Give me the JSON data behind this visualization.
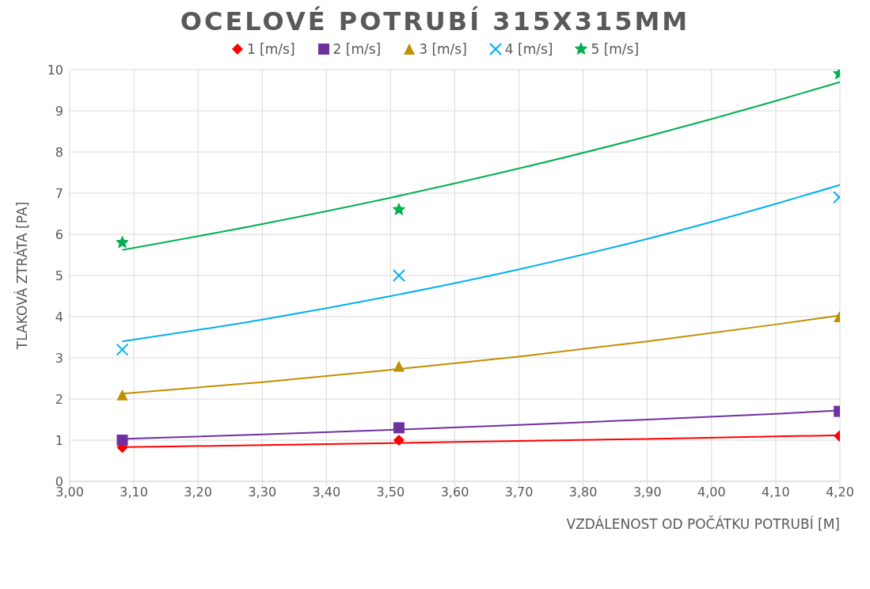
{
  "chart_data": {
    "type": "scatter",
    "title": "OCELOVÉ POTRUBÍ 315X315MM",
    "xlabel": "VZDÁLENOST OD POČÁTKU POTRUBÍ [M]",
    "ylabel": "TLAKOVÁ ZTRÁTA [PA]",
    "x": [
      3.082,
      3.513,
      4.199
    ],
    "series": [
      {
        "name": "1 [m/s]",
        "color": "#ff0000",
        "marker": "diamond",
        "values": [
          0.82,
          1.0,
          1.1
        ]
      },
      {
        "name": "2 [m/s]",
        "color": "#7030a0",
        "marker": "square",
        "values": [
          1.0,
          1.3,
          1.7
        ]
      },
      {
        "name": "3 [m/s]",
        "color": "#bf9000",
        "marker": "triangle",
        "values": [
          2.1,
          2.8,
          4.0
        ]
      },
      {
        "name": "4 [m/s]",
        "color": "#00b0f0",
        "marker": "cross",
        "values": [
          3.2,
          5.0,
          6.9
        ]
      },
      {
        "name": "5 [m/s]",
        "color": "#00b050",
        "marker": "star",
        "values": [
          5.8,
          6.6,
          9.9
        ]
      },
      {
        "type": "line",
        "color": "#ff0000",
        "x": [
          3.082,
          3.3,
          3.5,
          3.7,
          3.9,
          4.1,
          4.2
        ],
        "values": [
          0.83,
          0.88,
          0.93,
          0.98,
          1.03,
          1.09,
          1.12
        ]
      },
      {
        "type": "line",
        "color": "#7030a0",
        "x": [
          3.082,
          3.3,
          3.5,
          3.7,
          3.9,
          4.1,
          4.2
        ],
        "values": [
          1.03,
          1.14,
          1.25,
          1.37,
          1.5,
          1.64,
          1.72
        ]
      },
      {
        "type": "line",
        "color": "#bf9000",
        "x": [
          3.082,
          3.3,
          3.5,
          3.7,
          3.9,
          4.1,
          4.2
        ],
        "values": [
          2.13,
          2.41,
          2.71,
          3.03,
          3.4,
          3.81,
          4.03
        ]
      },
      {
        "type": "line",
        "color": "#00b0f0",
        "x": [
          3.082,
          3.3,
          3.5,
          3.7,
          3.9,
          4.1,
          4.2
        ],
        "values": [
          3.4,
          3.93,
          4.5,
          5.15,
          5.89,
          6.74,
          7.2
        ]
      },
      {
        "type": "line",
        "color": "#00b050",
        "x": [
          3.082,
          3.3,
          3.5,
          3.7,
          3.9,
          4.1,
          4.2
        ],
        "values": [
          5.62,
          6.25,
          6.89,
          7.6,
          8.38,
          9.24,
          9.7
        ]
      }
    ],
    "xlim": [
      3.0,
      4.2
    ],
    "xticks": [
      {
        "value": 3.0,
        "label": "3,00"
      },
      {
        "value": 3.1,
        "label": "3,10"
      },
      {
        "value": 3.2,
        "label": "3,20"
      },
      {
        "value": 3.3,
        "label": "3,30"
      },
      {
        "value": 3.4,
        "label": "3,40"
      },
      {
        "value": 3.5,
        "label": "3,50"
      },
      {
        "value": 3.6,
        "label": "3,60"
      },
      {
        "value": 3.7,
        "label": "3,70"
      },
      {
        "value": 3.8,
        "label": "3,80"
      },
      {
        "value": 3.9,
        "label": "3,90"
      },
      {
        "value": 4.0,
        "label": "4,00"
      },
      {
        "value": 4.1,
        "label": "4,10"
      },
      {
        "value": 4.2,
        "label": "4,20"
      }
    ],
    "ylim": [
      0,
      10
    ],
    "yticks": [
      0,
      1,
      2,
      3,
      4,
      5,
      6,
      7,
      8,
      9,
      10
    ],
    "grid": true,
    "legend": "top",
    "line_style": "solid"
  }
}
